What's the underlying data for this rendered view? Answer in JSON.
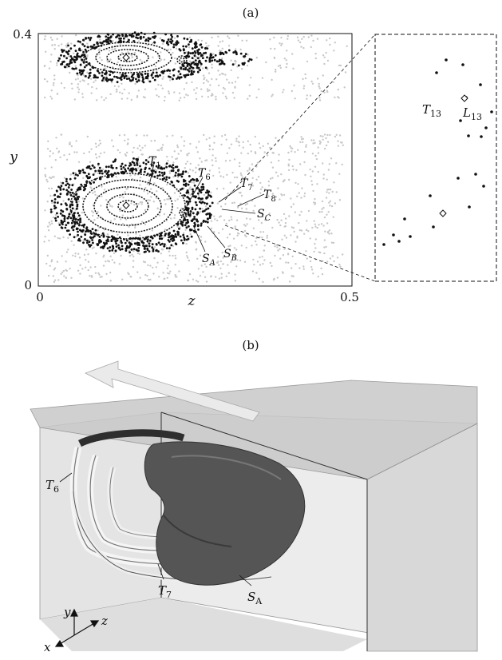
{
  "panel_a": {
    "label": "(a)",
    "x_axis": {
      "label": "z",
      "ticks": [
        "0",
        "0.5"
      ]
    },
    "y_axis": {
      "label": "y",
      "ticks": [
        "0",
        "0.4"
      ]
    },
    "annotations": {
      "T1": {
        "main": "T",
        "sub": "1"
      },
      "T6": {
        "main": "T",
        "sub": "6"
      },
      "T7": {
        "main": "T",
        "sub": "7"
      },
      "T8": {
        "main": "T",
        "sub": "8"
      },
      "SA": {
        "main": "S",
        "sub": "A"
      },
      "SB": {
        "main": "S",
        "sub": "B"
      },
      "SC": {
        "main": "S",
        "sub": "C"
      }
    },
    "inset": {
      "T13": {
        "main": "T",
        "sub": "13"
      },
      "L13": {
        "main": "L",
        "sub": "13"
      }
    }
  },
  "panel_b": {
    "label": "(b)",
    "annotations": {
      "T6": {
        "main": "T",
        "sub": "6"
      },
      "T7": {
        "main": "T",
        "sub": "7"
      },
      "SA": {
        "main": "S",
        "sub": "A"
      }
    },
    "axes_triad": {
      "x": "x",
      "y": "y",
      "z": "z"
    }
  },
  "colors": {
    "gray_points": "#c8c8c8",
    "black_points": "#111111",
    "surface_dark": "#505050",
    "box_fill": "#e6e6e6"
  }
}
